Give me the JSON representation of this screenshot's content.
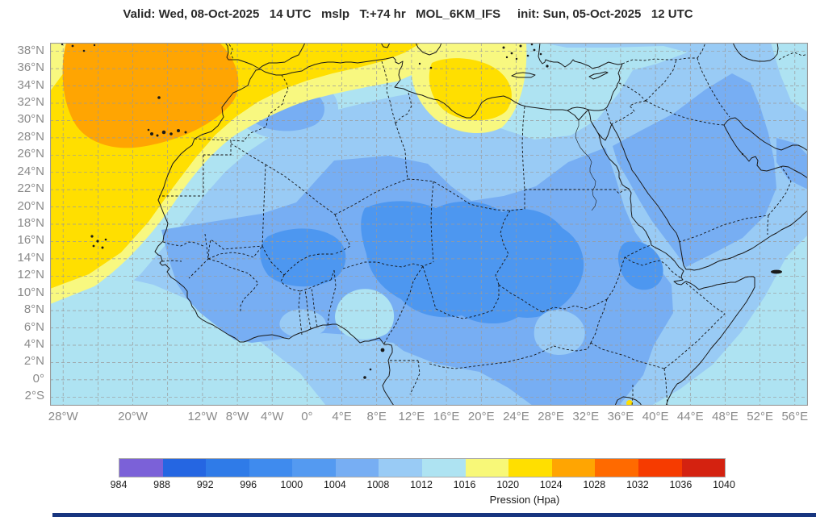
{
  "title": "Valid: Wed, 08-Oct-2025   14 UTC   mslp   T:+74 hr   MOL_6KM_IFS     init: Sun, 05-Oct-2025   12 UTC",
  "map": {
    "lat_labels": [
      {
        "label": "38°N",
        "deg": 38
      },
      {
        "label": "36°N",
        "deg": 36
      },
      {
        "label": "34°N",
        "deg": 34
      },
      {
        "label": "32°N",
        "deg": 32
      },
      {
        "label": "30°N",
        "deg": 30
      },
      {
        "label": "28°N",
        "deg": 28
      },
      {
        "label": "26°N",
        "deg": 26
      },
      {
        "label": "24°N",
        "deg": 24
      },
      {
        "label": "22°N",
        "deg": 22
      },
      {
        "label": "20°N",
        "deg": 20
      },
      {
        "label": "18°N",
        "deg": 18
      },
      {
        "label": "16°N",
        "deg": 16
      },
      {
        "label": "14°N",
        "deg": 14
      },
      {
        "label": "12°N",
        "deg": 12
      },
      {
        "label": "10°N",
        "deg": 10
      },
      {
        "label": "8°N",
        "deg": 8
      },
      {
        "label": "6°N",
        "deg": 6
      },
      {
        "label": "4°N",
        "deg": 4
      },
      {
        "label": "2°N",
        "deg": 2
      },
      {
        "label": "0°",
        "deg": 0
      },
      {
        "label": "2°S",
        "deg": -2
      }
    ],
    "lon_labels": [
      {
        "label": "28°W",
        "deg": -28
      },
      {
        "label": "20°W",
        "deg": -20
      },
      {
        "label": "12°W",
        "deg": -12
      },
      {
        "label": "8°W",
        "deg": -8
      },
      {
        "label": "4°W",
        "deg": -4
      },
      {
        "label": "0°",
        "deg": 0
      },
      {
        "label": "4°E",
        "deg": 4
      },
      {
        "label": "8°E",
        "deg": 8
      },
      {
        "label": "12°E",
        "deg": 12
      },
      {
        "label": "16°E",
        "deg": 16
      },
      {
        "label": "20°E",
        "deg": 20
      },
      {
        "label": "24°E",
        "deg": 24
      },
      {
        "label": "28°E",
        "deg": 28
      },
      {
        "label": "32°E",
        "deg": 32
      },
      {
        "label": "36°E",
        "deg": 36
      },
      {
        "label": "40°E",
        "deg": 40
      },
      {
        "label": "44°E",
        "deg": 44
      },
      {
        "label": "48°E",
        "deg": 48
      },
      {
        "label": "52°E",
        "deg": 52
      },
      {
        "label": "56°E",
        "deg": 56
      }
    ],
    "grid": {
      "lon_step_deg": 4,
      "lat_step_deg": 2
    }
  },
  "legend": {
    "title": "Pression (Hpa)",
    "values": [
      984,
      988,
      992,
      996,
      1000,
      1004,
      1008,
      1012,
      1016,
      1020,
      1024,
      1028,
      1032,
      1036,
      1040
    ],
    "colors": [
      "#7B61D8",
      "#2566E2",
      "#2F7BE8",
      "#3F8BEE",
      "#549AF1",
      "#77AEF3",
      "#99CBF5",
      "#AEE3F2",
      "#F8F878",
      "#FFDF00",
      "#FFA502",
      "#FF6A00",
      "#F63B00",
      "#D42210"
    ]
  },
  "palette": {
    "base": "#99CBF5",
    "cyan": "#AEE3F2",
    "medium": "#77AEF3",
    "dark": "#4D97F0",
    "lyellow": "#F8F880",
    "yellow": "#FFDF00",
    "orange": "#FFA502",
    "grid": "#9a9a9a",
    "coast": "#1a1a1a",
    "border": "#151515",
    "frame": "#999999",
    "footer": "#17357F",
    "label": "#8a8a8a",
    "tick": "#1a1a1a",
    "title_color": "#2b2b2b"
  }
}
